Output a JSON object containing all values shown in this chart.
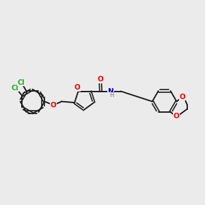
{
  "bg_color": "#ebebeb",
  "bond_color": "#1a1a1a",
  "O_color": "#ff0000",
  "N_color": "#0000cc",
  "Cl_color": "#22aa22",
  "figsize": [
    3.0,
    3.0
  ],
  "dpi": 100,
  "xlim": [
    0,
    10
  ],
  "ylim": [
    0,
    10
  ]
}
